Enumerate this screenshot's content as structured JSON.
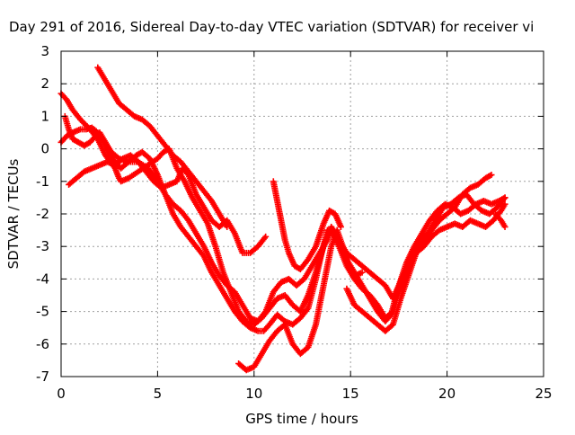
{
  "chart_data": {
    "type": "scatter",
    "title": "Day 291 of 2016, Sidereal Day-to-day VTEC variation (SDTVAR) for receiver vi",
    "xlabel": "GPS time / hours",
    "ylabel": "SDTVAR / TECUs",
    "xlim": [
      0,
      25
    ],
    "ylim": [
      -7,
      3
    ],
    "xticks": [
      "0",
      "5",
      "10",
      "15",
      "20",
      "25"
    ],
    "yticks": [
      "3",
      "2",
      "1",
      "0",
      "-1",
      "-2",
      "-3",
      "-4",
      "-5",
      "-6",
      "-7"
    ],
    "grid": true,
    "marker": "plus",
    "color": "#ff0000",
    "series": [
      {
        "points": [
          [
            0.0,
            1.7
          ],
          [
            0.3,
            1.5
          ],
          [
            0.6,
            1.2
          ],
          [
            1.0,
            0.9
          ],
          [
            1.5,
            0.6
          ],
          [
            1.9,
            0.3
          ],
          [
            2.3,
            -0.2
          ],
          [
            2.8,
            -0.6
          ],
          [
            3.0,
            -0.9
          ],
          [
            3.1,
            -1.0
          ],
          [
            3.5,
            -0.9
          ],
          [
            4.0,
            -0.7
          ],
          [
            4.5,
            -0.5
          ],
          [
            5.0,
            -0.3
          ],
          [
            5.3,
            -0.1
          ],
          [
            5.6,
            0.0
          ],
          [
            6.0,
            -0.6
          ],
          [
            6.4,
            -1.0
          ],
          [
            6.8,
            -1.5
          ],
          [
            7.2,
            -1.9
          ],
          [
            7.6,
            -2.3
          ],
          [
            8.0,
            -3.0
          ],
          [
            8.4,
            -3.8
          ],
          [
            8.8,
            -4.4
          ],
          [
            9.2,
            -5.0
          ],
          [
            9.6,
            -5.3
          ],
          [
            10.0,
            -5.4
          ],
          [
            10.4,
            -5.2
          ],
          [
            10.8,
            -4.9
          ],
          [
            11.2,
            -4.6
          ],
          [
            11.6,
            -4.5
          ],
          [
            12.0,
            -4.8
          ],
          [
            12.4,
            -5.0
          ],
          [
            12.8,
            -4.5
          ],
          [
            13.2,
            -3.8
          ],
          [
            13.6,
            -3.0
          ],
          [
            14.0,
            -2.4
          ],
          [
            14.4,
            -2.8
          ],
          [
            14.8,
            -3.4
          ],
          [
            15.2,
            -3.8
          ],
          [
            15.6,
            -4.2
          ],
          [
            16.0,
            -4.6
          ],
          [
            16.4,
            -5.0
          ],
          [
            16.8,
            -5.3
          ],
          [
            17.1,
            -5.1
          ],
          [
            17.4,
            -4.4
          ],
          [
            17.8,
            -3.8
          ],
          [
            18.2,
            -3.2
          ],
          [
            18.6,
            -2.8
          ],
          [
            19.0,
            -2.6
          ],
          [
            19.4,
            -2.2
          ],
          [
            19.8,
            -1.8
          ],
          [
            20.2,
            -1.7
          ],
          [
            20.6,
            -1.5
          ],
          [
            21.0,
            -1.4
          ],
          [
            21.4,
            -1.7
          ],
          [
            21.8,
            -1.9
          ],
          [
            22.2,
            -2.0
          ],
          [
            22.6,
            -1.8
          ],
          [
            23.0,
            -1.5
          ]
        ]
      },
      {
        "points": [
          [
            0.0,
            0.2
          ],
          [
            0.3,
            0.4
          ],
          [
            0.6,
            0.5
          ],
          [
            1.0,
            0.6
          ],
          [
            1.3,
            0.6
          ],
          [
            1.6,
            0.65
          ],
          [
            1.9,
            0.5
          ],
          [
            2.2,
            0.2
          ],
          [
            2.5,
            -0.2
          ],
          [
            2.8,
            -0.4
          ],
          [
            3.1,
            -0.6
          ],
          [
            3.5,
            -0.4
          ],
          [
            3.9,
            -0.2
          ],
          [
            4.2,
            -0.1
          ],
          [
            4.6,
            -0.3
          ],
          [
            5.0,
            -0.8
          ],
          [
            5.4,
            -1.4
          ],
          [
            5.8,
            -2.0
          ],
          [
            6.2,
            -2.4
          ],
          [
            6.6,
            -2.7
          ],
          [
            7.0,
            -3.0
          ],
          [
            7.4,
            -3.3
          ],
          [
            7.8,
            -3.8
          ],
          [
            8.2,
            -4.2
          ],
          [
            8.6,
            -4.6
          ],
          [
            9.0,
            -5.0
          ],
          [
            9.4,
            -5.3
          ],
          [
            9.8,
            -5.5
          ],
          [
            10.2,
            -5.6
          ],
          [
            10.5,
            -5.6
          ],
          [
            10.8,
            -5.4
          ],
          [
            11.2,
            -5.1
          ],
          [
            11.6,
            -5.3
          ],
          [
            12.0,
            -5.4
          ],
          [
            12.4,
            -5.2
          ],
          [
            12.8,
            -4.9
          ],
          [
            13.2,
            -4.0
          ],
          [
            13.5,
            -3.2
          ],
          [
            13.8,
            -2.5
          ],
          [
            14.1,
            -2.6
          ],
          [
            14.4,
            -3.0
          ],
          [
            14.8,
            -3.6
          ],
          [
            15.2,
            -4.0
          ],
          [
            15.6,
            -4.3
          ],
          [
            16.0,
            -4.5
          ],
          [
            16.4,
            -4.8
          ],
          [
            16.8,
            -5.2
          ],
          [
            17.2,
            -5.0
          ],
          [
            17.6,
            -4.2
          ],
          [
            18.0,
            -3.6
          ],
          [
            18.4,
            -3.2
          ],
          [
            18.8,
            -3.0
          ],
          [
            19.2,
            -2.7
          ],
          [
            19.6,
            -2.5
          ],
          [
            20.0,
            -2.4
          ],
          [
            20.4,
            -2.3
          ],
          [
            20.8,
            -2.4
          ],
          [
            21.2,
            -2.2
          ],
          [
            21.6,
            -2.3
          ],
          [
            22.0,
            -2.4
          ],
          [
            22.4,
            -2.2
          ],
          [
            22.8,
            -1.9
          ],
          [
            23.0,
            -1.7
          ]
        ]
      },
      {
        "points": [
          [
            0.2,
            1.0
          ],
          [
            0.4,
            0.6
          ],
          [
            0.6,
            0.3
          ],
          [
            0.9,
            0.2
          ],
          [
            1.2,
            0.1
          ],
          [
            1.5,
            0.2
          ],
          [
            1.8,
            0.4
          ],
          [
            2.0,
            0.5
          ],
          [
            2.3,
            0.2
          ],
          [
            2.6,
            -0.1
          ],
          [
            3.0,
            -0.3
          ],
          [
            3.5,
            -0.4
          ],
          [
            4.0,
            -0.4
          ],
          [
            4.5,
            -0.6
          ],
          [
            5.0,
            -1.0
          ],
          [
            5.4,
            -1.4
          ],
          [
            5.8,
            -1.7
          ],
          [
            6.2,
            -1.9
          ],
          [
            6.6,
            -2.2
          ],
          [
            7.0,
            -2.6
          ],
          [
            7.4,
            -3.0
          ],
          [
            7.8,
            -3.5
          ],
          [
            8.2,
            -3.9
          ],
          [
            8.6,
            -4.2
          ],
          [
            9.0,
            -4.4
          ],
          [
            9.4,
            -4.8
          ],
          [
            9.8,
            -5.2
          ],
          [
            10.2,
            -5.3
          ],
          [
            10.6,
            -5.0
          ],
          [
            11.0,
            -4.4
          ],
          [
            11.4,
            -4.1
          ],
          [
            11.8,
            -4.0
          ],
          [
            12.2,
            -4.2
          ],
          [
            12.6,
            -4.0
          ],
          [
            13.0,
            -3.6
          ],
          [
            13.4,
            -3.2
          ],
          [
            13.8,
            -2.8
          ],
          [
            14.0,
            -2.4
          ],
          [
            14.4,
            -2.8
          ],
          [
            14.8,
            -3.2
          ],
          [
            15.2,
            -3.4
          ],
          [
            15.6,
            -3.6
          ],
          [
            16.0,
            -3.8
          ],
          [
            16.4,
            -4.0
          ],
          [
            16.8,
            -4.2
          ],
          [
            17.2,
            -4.6
          ],
          [
            17.5,
            -4.2
          ],
          [
            17.9,
            -3.5
          ],
          [
            18.3,
            -3.0
          ],
          [
            18.7,
            -2.6
          ],
          [
            19.1,
            -2.2
          ],
          [
            19.5,
            -1.9
          ],
          [
            19.9,
            -1.7
          ],
          [
            20.3,
            -1.8
          ],
          [
            20.7,
            -2.0
          ],
          [
            21.1,
            -1.9
          ],
          [
            21.5,
            -1.7
          ],
          [
            21.9,
            -1.6
          ],
          [
            22.3,
            -1.7
          ],
          [
            22.7,
            -1.6
          ],
          [
            23.0,
            -1.5
          ]
        ]
      },
      {
        "points": [
          [
            0.4,
            -1.1
          ],
          [
            0.8,
            -0.9
          ],
          [
            1.2,
            -0.7
          ],
          [
            1.6,
            -0.6
          ],
          [
            2.0,
            -0.5
          ],
          [
            2.4,
            -0.4
          ],
          [
            2.8,
            -0.5
          ],
          [
            3.2,
            -0.3
          ],
          [
            3.6,
            -0.2
          ],
          [
            4.0,
            -0.4
          ],
          [
            4.4,
            -0.7
          ],
          [
            4.8,
            -1.0
          ],
          [
            5.2,
            -1.2
          ],
          [
            5.6,
            -1.1
          ],
          [
            6.0,
            -1.0
          ],
          [
            6.3,
            -0.6
          ],
          [
            6.6,
            -0.8
          ],
          [
            7.0,
            -1.4
          ],
          [
            7.4,
            -1.8
          ],
          [
            7.8,
            -2.2
          ],
          [
            8.2,
            -2.4
          ],
          [
            8.6,
            -2.2
          ],
          [
            9.0,
            -2.6
          ],
          [
            9.4,
            -3.2
          ],
          [
            9.8,
            -3.2
          ],
          [
            10.2,
            -3.0
          ],
          [
            10.6,
            -2.7
          ]
        ]
      },
      {
        "points": [
          [
            1.9,
            2.5
          ],
          [
            2.2,
            2.2
          ],
          [
            2.6,
            1.8
          ],
          [
            3.0,
            1.4
          ],
          [
            3.4,
            1.2
          ],
          [
            3.8,
            1.0
          ],
          [
            4.2,
            0.9
          ],
          [
            4.6,
            0.7
          ],
          [
            5.0,
            0.4
          ],
          [
            5.4,
            0.1
          ],
          [
            5.8,
            -0.2
          ],
          [
            6.2,
            -0.4
          ],
          [
            6.6,
            -0.7
          ],
          [
            7.0,
            -1.0
          ],
          [
            7.4,
            -1.3
          ],
          [
            7.8,
            -1.6
          ],
          [
            8.2,
            -2.0
          ],
          [
            8.6,
            -2.4
          ]
        ]
      },
      {
        "points": [
          [
            9.2,
            -6.6
          ],
          [
            9.6,
            -6.8
          ],
          [
            10.0,
            -6.7
          ],
          [
            10.4,
            -6.3
          ],
          [
            10.8,
            -5.9
          ],
          [
            11.2,
            -5.6
          ],
          [
            11.6,
            -5.4
          ],
          [
            12.0,
            -6.0
          ],
          [
            12.4,
            -6.3
          ],
          [
            12.8,
            -6.1
          ],
          [
            13.2,
            -5.4
          ],
          [
            13.6,
            -4.2
          ],
          [
            14.0,
            -3.0
          ],
          [
            14.3,
            -2.5
          ],
          [
            14.6,
            -3.0
          ],
          [
            14.9,
            -3.6
          ],
          [
            15.2,
            -3.9
          ],
          [
            15.6,
            -3.8
          ]
        ]
      },
      {
        "points": [
          [
            11.0,
            -1.0
          ],
          [
            11.2,
            -1.6
          ],
          [
            11.4,
            -2.2
          ],
          [
            11.6,
            -2.8
          ],
          [
            11.8,
            -3.2
          ],
          [
            12.1,
            -3.6
          ],
          [
            12.4,
            -3.7
          ],
          [
            12.8,
            -3.4
          ],
          [
            13.2,
            -3.0
          ],
          [
            13.6,
            -2.3
          ],
          [
            13.9,
            -1.9
          ],
          [
            14.2,
            -2.0
          ],
          [
            14.5,
            -2.4
          ]
        ]
      },
      {
        "points": [
          [
            14.8,
            -4.3
          ],
          [
            15.2,
            -4.8
          ],
          [
            15.6,
            -5.0
          ],
          [
            16.0,
            -5.2
          ],
          [
            16.4,
            -5.4
          ],
          [
            16.8,
            -5.6
          ],
          [
            17.2,
            -5.4
          ],
          [
            17.6,
            -4.6
          ],
          [
            18.0,
            -3.9
          ],
          [
            18.4,
            -3.2
          ],
          [
            18.8,
            -2.8
          ],
          [
            19.2,
            -2.5
          ],
          [
            19.6,
            -2.2
          ],
          [
            20.0,
            -2.0
          ],
          [
            20.4,
            -1.8
          ],
          [
            20.8,
            -1.4
          ],
          [
            21.2,
            -1.2
          ],
          [
            21.6,
            -1.1
          ],
          [
            22.0,
            -0.9
          ],
          [
            22.3,
            -0.8
          ]
        ]
      },
      {
        "points": [
          [
            22.5,
            -2.0
          ],
          [
            22.8,
            -2.2
          ],
          [
            23.0,
            -2.4
          ]
        ]
      }
    ]
  }
}
